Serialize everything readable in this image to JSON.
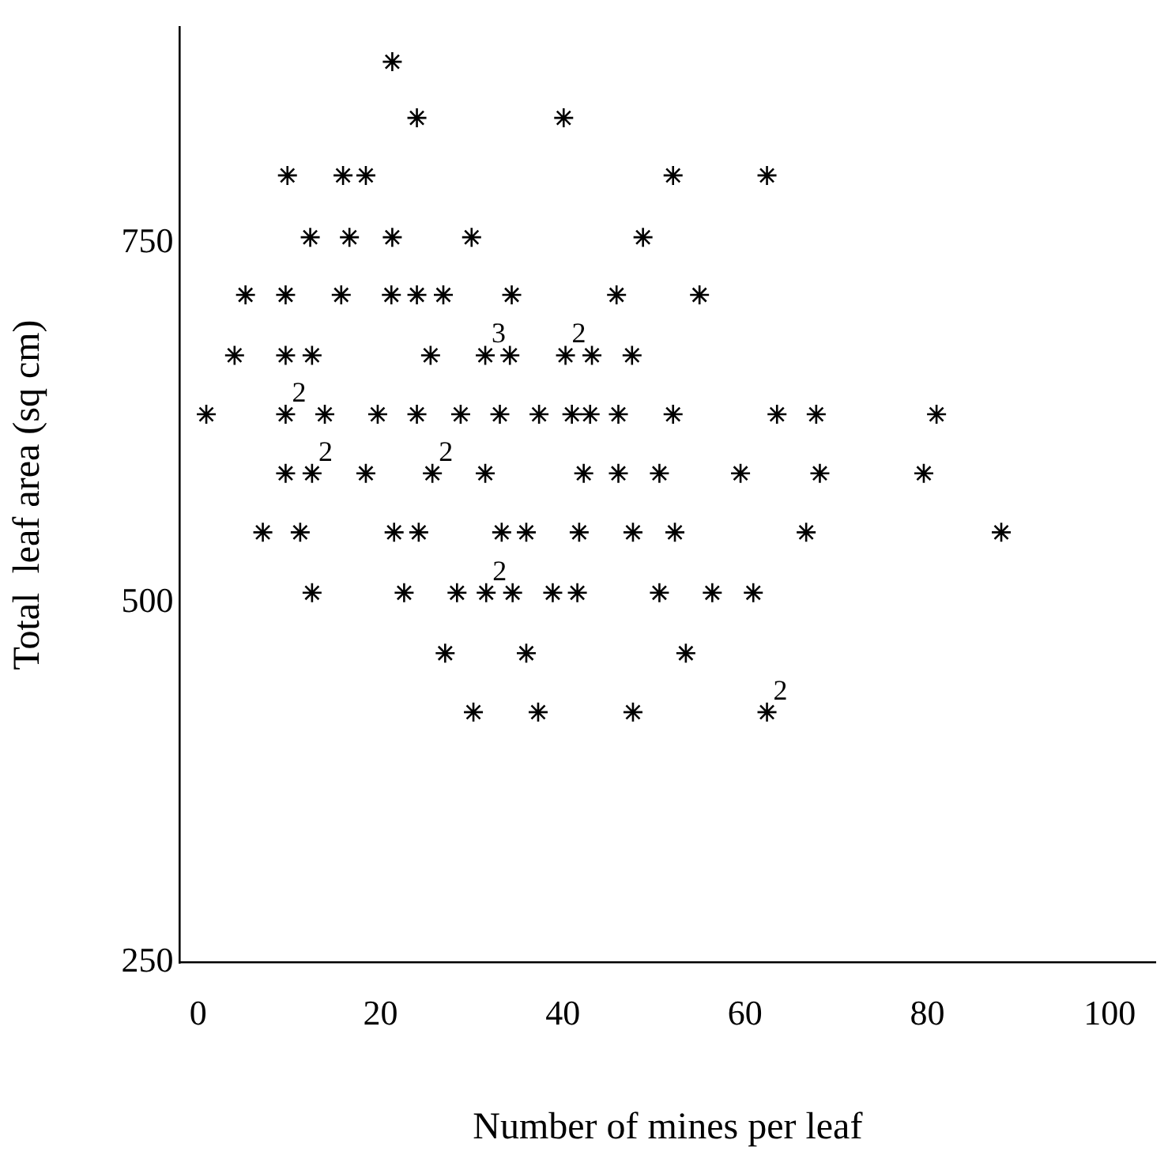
{
  "chart_data": {
    "type": "scatter",
    "xlabel": "Number of mines per leaf",
    "ylabel": "Total  leaf area (sq cm)",
    "xlim": [
      -2,
      105
    ],
    "ylim": [
      250,
      900
    ],
    "xticks": [
      0,
      20,
      40,
      60,
      80,
      100
    ],
    "yticks": [
      250,
      500,
      750
    ],
    "grid": false,
    "legend": false,
    "marker": "cross",
    "series": [
      {
        "color": "#000000",
        "x": [
          21.3,
          24.0,
          40.1,
          9.8,
          15.9,
          18.4,
          52.1,
          62.4,
          12.3,
          16.6,
          21.3,
          30.0,
          48.8,
          5.2,
          9.6,
          15.7,
          21.2,
          24.0,
          26.9,
          34.4,
          45.9,
          55.0,
          4.0,
          9.6,
          12.5,
          25.5,
          34.2,
          43.2,
          47.6,
          0.9,
          13.9,
          19.7,
          24.0,
          28.8,
          33.1,
          37.4,
          41.0,
          43.0,
          46.1,
          52.1,
          63.5,
          67.8,
          81.0,
          9.6,
          18.4,
          31.5,
          42.3,
          46.1,
          50.6,
          59.5,
          68.2,
          79.6,
          7.1,
          11.2,
          21.5,
          24.2,
          33.3,
          36.0,
          41.8,
          47.7,
          52.3,
          66.7,
          88.1,
          12.5,
          22.6,
          28.4,
          34.5,
          38.9,
          41.6,
          50.6,
          56.4,
          60.9,
          27.1,
          36.0,
          53.5,
          30.2,
          37.3,
          47.7
        ],
        "values": [
          876,
          837,
          837,
          797,
          797,
          797,
          797,
          797,
          754,
          754,
          754,
          754,
          754,
          714,
          714,
          714,
          714,
          714,
          714,
          714,
          714,
          714,
          672,
          672,
          672,
          672,
          672,
          672,
          672,
          631,
          631,
          631,
          631,
          631,
          631,
          631,
          631,
          631,
          631,
          631,
          631,
          631,
          631,
          590,
          590,
          590,
          590,
          590,
          590,
          590,
          590,
          590,
          549,
          549,
          549,
          549,
          549,
          549,
          549,
          549,
          549,
          549,
          549,
          507,
          507,
          507,
          507,
          507,
          507,
          507,
          507,
          507,
          465,
          465,
          465,
          424,
          424,
          424
        ]
      },
      {
        "color": "#000000",
        "x": [
          31.5,
          40.3,
          9.6,
          12.5,
          25.7,
          31.6,
          62.4
        ],
        "values": [
          672,
          672,
          631,
          590,
          590,
          507,
          424
        ]
      }
    ],
    "annotations": [
      {
        "text": "3",
        "x": 31.5,
        "y": 672
      },
      {
        "text": "2",
        "x": 40.3,
        "y": 672
      },
      {
        "text": "2",
        "x": 9.6,
        "y": 631
      },
      {
        "text": "2",
        "x": 12.5,
        "y": 590
      },
      {
        "text": "2",
        "x": 25.7,
        "y": 590
      },
      {
        "text": "2",
        "x": 31.6,
        "y": 507
      },
      {
        "text": "2",
        "x": 62.4,
        "y": 424
      }
    ]
  }
}
